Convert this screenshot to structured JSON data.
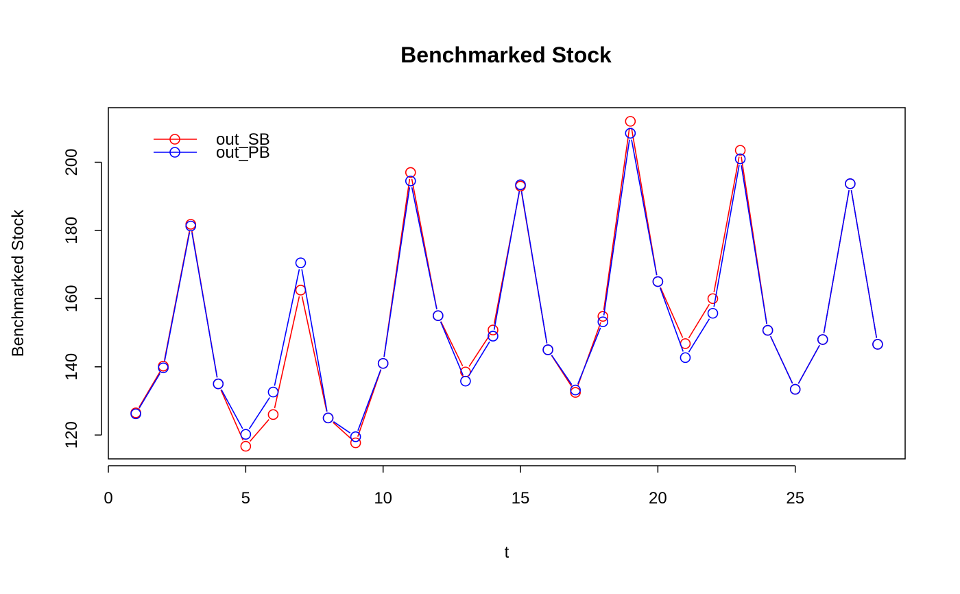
{
  "chart_data": {
    "type": "line",
    "title": "Benchmarked Stock",
    "xlabel": "t",
    "ylabel": "Benchmarked Stock",
    "xlim": [
      0,
      29
    ],
    "ylim": [
      113,
      216
    ],
    "xticks": [
      0,
      5,
      10,
      15,
      20,
      25
    ],
    "yticks": [
      120,
      140,
      160,
      180,
      200
    ],
    "grid": false,
    "legend_position": "top-left",
    "x": [
      1,
      2,
      3,
      4,
      5,
      6,
      7,
      8,
      9,
      10,
      11,
      12,
      13,
      14,
      15,
      16,
      17,
      18,
      19,
      20,
      21,
      22,
      23,
      24,
      25,
      26,
      27,
      28
    ],
    "series": [
      {
        "name": "out_SB",
        "color": "#ff0000",
        "marker": "open-circle",
        "values": [
          126.5,
          140.2,
          181.8,
          135.0,
          116.7,
          126.0,
          162.5,
          125.0,
          117.7,
          141.0,
          197.0,
          155.0,
          138.5,
          150.8,
          193.0,
          145.0,
          132.5,
          154.8,
          212.0,
          165.0,
          146.8,
          160.0,
          203.5,
          150.7,
          133.4,
          148.0,
          193.7,
          146.6
        ]
      },
      {
        "name": "out_PB",
        "color": "#0000ff",
        "marker": "open-circle",
        "values": [
          126.2,
          139.7,
          181.3,
          135.0,
          120.2,
          132.6,
          170.5,
          125.0,
          119.5,
          141.0,
          194.5,
          155.0,
          135.8,
          149.0,
          193.4,
          145.0,
          133.2,
          153.2,
          208.5,
          165.0,
          142.7,
          155.7,
          201.0,
          150.7,
          133.4,
          148.0,
          193.7,
          146.6
        ]
      }
    ]
  }
}
